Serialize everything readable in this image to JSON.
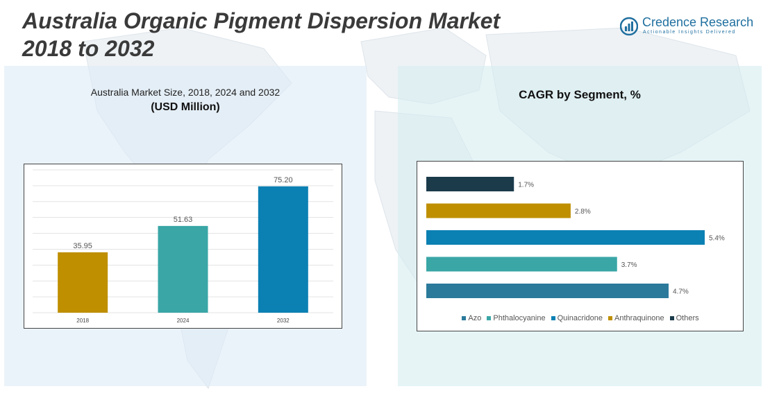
{
  "title_line1": "Australia Organic Pigment Dispersion Market",
  "title_line2": "2018 to 2032",
  "logo": {
    "name": "Credence Research",
    "tagline": "Actionable Insights Delivered"
  },
  "left_panel": {
    "subtitle": "Australia Market Size, 2018, 2024 and 2032",
    "unit": "(USD Million)"
  },
  "right_panel": {
    "title": "CAGR by Segment, %"
  },
  "colors": {
    "gold": "#bf8f00",
    "teal": "#3aa6a6",
    "blue": "#0b80b3",
    "navy": "#1b3b4b",
    "steel": "#2b7a9c"
  },
  "chart_data": [
    {
      "type": "bar",
      "title": "Australia Market Size, 2018, 2024 and 2032",
      "ylabel": "USD Million",
      "categories": [
        "2018",
        "2024",
        "2032"
      ],
      "values": [
        35.95,
        51.63,
        75.2
      ],
      "labels": [
        "35.95",
        "51.63",
        "75.20"
      ],
      "colors": [
        "#bf8f00",
        "#3aa6a6",
        "#0b80b3"
      ],
      "ylim": [
        0,
        85
      ],
      "grid": true
    },
    {
      "type": "bar",
      "orientation": "horizontal",
      "title": "CAGR by Segment, %",
      "categories": [
        "Others",
        "Anthraquinone",
        "Quinacridone",
        "Phthalocyanine",
        "Azo"
      ],
      "values": [
        1.7,
        2.8,
        5.4,
        3.7,
        4.7
      ],
      "labels": [
        "1.7%",
        "2.8%",
        "5.4%",
        "3.7%",
        "4.7%"
      ],
      "colors": [
        "#1b3b4b",
        "#bf8f00",
        "#0b80b3",
        "#3aa6a6",
        "#2b7a9c"
      ],
      "xlim": [
        0,
        5.4
      ],
      "legend": [
        "Azo",
        "Phthalocyanine",
        "Quinacridone",
        "Anthraquinone",
        "Others"
      ],
      "legend_colors": [
        "#2b7a9c",
        "#3aa6a6",
        "#0b80b3",
        "#bf8f00",
        "#1b3b4b"
      ],
      "legend_position": "bottom"
    }
  ]
}
